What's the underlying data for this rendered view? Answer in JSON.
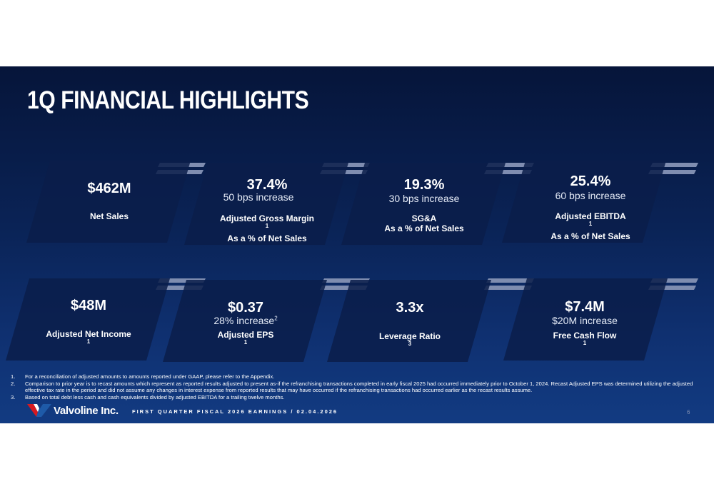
{
  "title": "1Q FINANCIAL HIGHLIGHTS",
  "cards_row1": [
    {
      "value": "$462M",
      "change": "",
      "label1": "Net Sales",
      "label1_sup": "",
      "label2": ""
    },
    {
      "value": "37.4%",
      "change": "50 bps increase",
      "label1": "Adjusted Gross Margin",
      "label1_sup": "1",
      "label2": "As a % of Net Sales"
    },
    {
      "value": "19.3%",
      "change": "30 bps increase",
      "label1": "SG&A",
      "label1_sup": "",
      "label2": "As a % of Net Sales"
    },
    {
      "value": "25.4%",
      "change": "60 bps increase",
      "label1": "Adjusted EBITDA",
      "label1_sup": "1",
      "label2": "As a % of Net Sales"
    }
  ],
  "cards_row2": [
    {
      "value": "$48M",
      "change": "",
      "change_sup": "",
      "label1": "Adjusted Net Income",
      "label1_sup": "1"
    },
    {
      "value": "$0.37",
      "change": "28% increase",
      "change_sup": "2",
      "label1": "Adjusted EPS",
      "label1_sup": "1"
    },
    {
      "value": "3.3x",
      "change": "",
      "change_sup": "",
      "label1": "Leverage Ratio",
      "label1_sup": "3"
    },
    {
      "value": "$7.4M",
      "change": "$20M increase",
      "change_sup": "",
      "label1": "Free Cash Flow",
      "label1_sup": "1"
    }
  ],
  "footnotes": [
    {
      "num": "1.",
      "text": "For a reconciliation of adjusted amounts to amounts reported under GAAP, please refer to the Appendix."
    },
    {
      "num": "2.",
      "text": "Comparison to prior year is to recast amounts which represent as reported results adjusted to present as-if the refranchising transactions completed in early fiscal 2025 had occurred immediately prior to October 1, 2024. Recast Adjusted EPS was determined utilizing the adjusted effective tax rate in the period and did not assume any changes in interest expense from reported results that may have occurred if the refranchising transactions had occurred earlier as the recast results assume."
    },
    {
      "num": "3.",
      "text": "Based on total debt less cash and cash equivalents divided by adjusted EBITDA for a trailing twelve months."
    }
  ],
  "footer": {
    "logo_text": "Valvoline Inc.",
    "text": "FIRST QUARTER FISCAL 2026 EARNINGS / 02.04.2026",
    "page": "6"
  },
  "colors": {
    "background_top": "#06153a",
    "background_bottom": "#123b82",
    "card": "#0a1d4a",
    "stripe": "#7f8db0",
    "logo_red": "#d71920",
    "logo_blue": "#1e5aa8"
  },
  "icons": [
    "valvoline-v-icon",
    "decorative-stripes"
  ]
}
